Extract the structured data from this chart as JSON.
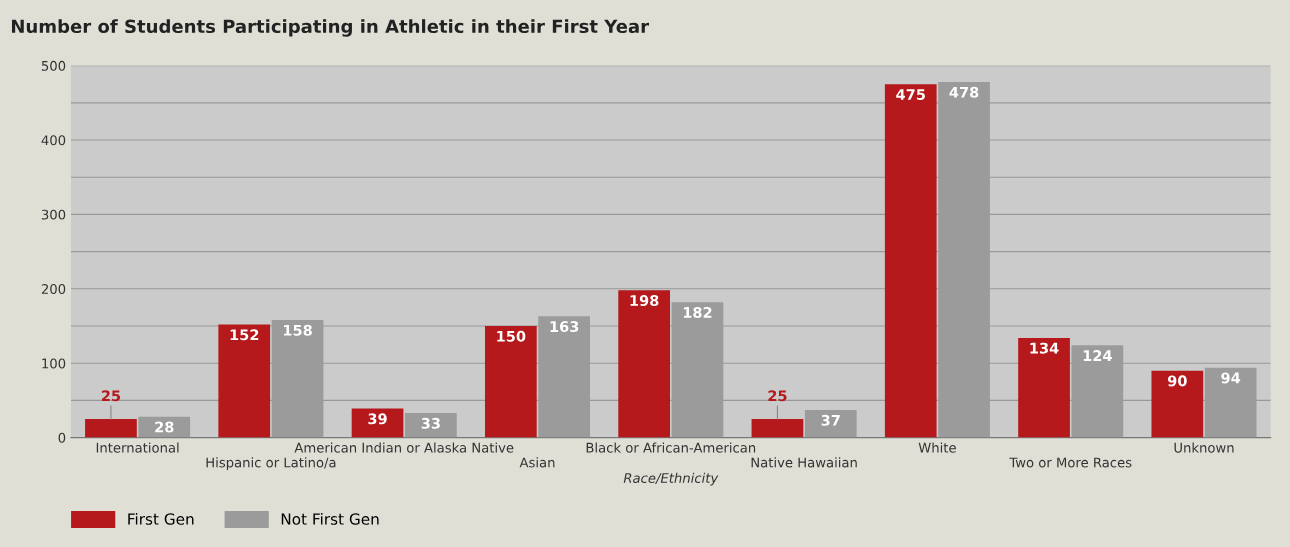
{
  "chart_data": {
    "type": "bar",
    "title": "Number of Students Participating in Athletic in their First Year",
    "xlabel": "Race/Ethnicity",
    "categories": [
      "International",
      "Hispanic or Latino/a",
      "American Indian or Alaska Native",
      "Asian",
      "Black or African-American",
      "Native Hawaiian",
      "White",
      "Two or More Races",
      "Unknown"
    ],
    "series": [
      {
        "name": "First Gen",
        "color": "#b5191c",
        "values": [
          25,
          152,
          39,
          150,
          198,
          25,
          475,
          134,
          90
        ]
      },
      {
        "name": "Not First Gen",
        "color": "#9b9b9b",
        "values": [
          28,
          158,
          33,
          163,
          182,
          37,
          478,
          124,
          94
        ]
      }
    ],
    "ylim": [
      0,
      500
    ],
    "yticks": [
      0,
      {
        "value": 50,
        "label": null
      },
      100,
      {
        "value": 150,
        "label": null
      },
      200,
      {
        "value": 250,
        "label": null
      },
      300,
      {
        "value": 350,
        "label": null
      },
      400,
      {
        "value": 450,
        "label": null
      },
      500
    ],
    "grid": "y",
    "data_labels": true,
    "legend": "bottom left"
  }
}
